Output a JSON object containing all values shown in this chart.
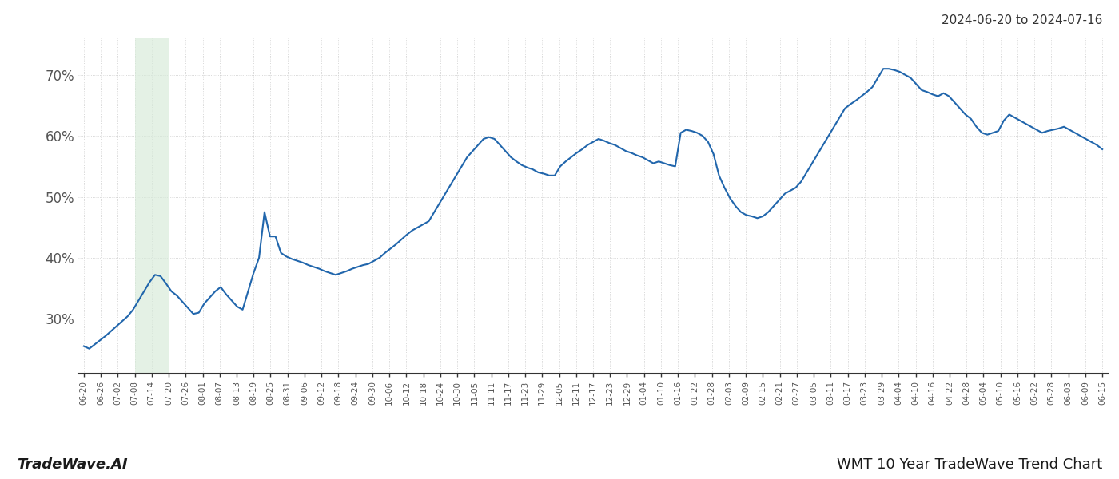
{
  "title_top_right": "2024-06-20 to 2024-07-16",
  "title_bottom_left": "TradeWave.AI",
  "title_bottom_right": "WMT 10 Year TradeWave Trend Chart",
  "line_color": "#2166ac",
  "line_width": 1.5,
  "highlight_color": "#d6ead8",
  "highlight_alpha": 0.65,
  "background_color": "#ffffff",
  "grid_color": "#cccccc",
  "grid_linestyle": "dotted",
  "ytick_labels": [
    "30%",
    "40%",
    "50%",
    "60%",
    "70%"
  ],
  "ytick_values": [
    30,
    40,
    50,
    60,
    70
  ],
  "ylim": [
    21,
    76
  ],
  "x_tick_labels": [
    "06-20",
    "06-26",
    "07-02",
    "07-08",
    "07-14",
    "07-20",
    "07-26",
    "08-01",
    "08-07",
    "08-13",
    "08-19",
    "08-25",
    "08-31",
    "09-06",
    "09-12",
    "09-18",
    "09-24",
    "09-30",
    "10-06",
    "10-12",
    "10-18",
    "10-24",
    "10-30",
    "11-05",
    "11-11",
    "11-17",
    "11-23",
    "11-29",
    "12-05",
    "12-11",
    "12-17",
    "12-23",
    "12-29",
    "01-04",
    "01-10",
    "01-16",
    "01-22",
    "01-28",
    "02-03",
    "02-09",
    "02-15",
    "02-21",
    "02-27",
    "03-05",
    "03-11",
    "03-17",
    "03-23",
    "03-29",
    "04-04",
    "04-10",
    "04-16",
    "04-22",
    "04-28",
    "05-04",
    "05-10",
    "05-16",
    "05-22",
    "05-28",
    "06-03",
    "06-09",
    "06-15"
  ],
  "values": [
    25.5,
    25.1,
    25.8,
    26.5,
    27.2,
    28.0,
    28.8,
    29.6,
    30.4,
    31.5,
    33.0,
    34.5,
    36.0,
    37.2,
    37.0,
    35.8,
    34.5,
    33.8,
    32.8,
    31.8,
    30.8,
    31.0,
    32.5,
    33.5,
    34.5,
    35.2,
    34.0,
    33.0,
    32.0,
    31.5,
    34.5,
    37.5,
    40.0,
    47.5,
    43.5,
    43.5,
    40.8,
    40.2,
    39.8,
    39.5,
    39.2,
    38.8,
    38.5,
    38.2,
    37.8,
    37.5,
    37.2,
    37.5,
    37.8,
    38.2,
    38.5,
    38.8,
    39.0,
    39.5,
    40.0,
    40.8,
    41.5,
    42.2,
    43.0,
    43.8,
    44.5,
    45.0,
    45.5,
    46.0,
    47.5,
    49.0,
    50.5,
    52.0,
    53.5,
    55.0,
    56.5,
    57.5,
    58.5,
    59.5,
    59.8,
    59.5,
    58.5,
    57.5,
    56.5,
    55.8,
    55.2,
    54.8,
    54.5,
    54.0,
    53.8,
    53.5,
    53.5,
    55.0,
    55.8,
    56.5,
    57.2,
    57.8,
    58.5,
    59.0,
    59.5,
    59.2,
    58.8,
    58.5,
    58.0,
    57.5,
    57.2,
    56.8,
    56.5,
    56.0,
    55.5,
    55.8,
    55.5,
    55.2,
    55.0,
    60.5,
    61.0,
    60.8,
    60.5,
    60.0,
    59.0,
    57.0,
    53.5,
    51.5,
    49.8,
    48.5,
    47.5,
    47.0,
    46.8,
    46.5,
    46.8,
    47.5,
    48.5,
    49.5,
    50.5,
    51.0,
    51.5,
    52.5,
    54.0,
    55.5,
    57.0,
    58.5,
    60.0,
    61.5,
    63.0,
    64.5,
    65.2,
    65.8,
    66.5,
    67.2,
    68.0,
    69.5,
    71.0,
    71.0,
    70.8,
    70.5,
    70.0,
    69.5,
    68.5,
    67.5,
    67.2,
    66.8,
    66.5,
    67.0,
    66.5,
    65.5,
    64.5,
    63.5,
    62.8,
    61.5,
    60.5,
    60.2,
    60.5,
    60.8,
    62.5,
    63.5,
    63.0,
    62.5,
    62.0,
    61.5,
    61.0,
    60.5,
    60.8,
    61.0,
    61.2,
    61.5,
    61.0,
    60.5,
    60.0,
    59.5,
    59.0,
    58.5,
    57.8
  ],
  "highlight_start_label": "07-08",
  "highlight_end_label": "07-20"
}
